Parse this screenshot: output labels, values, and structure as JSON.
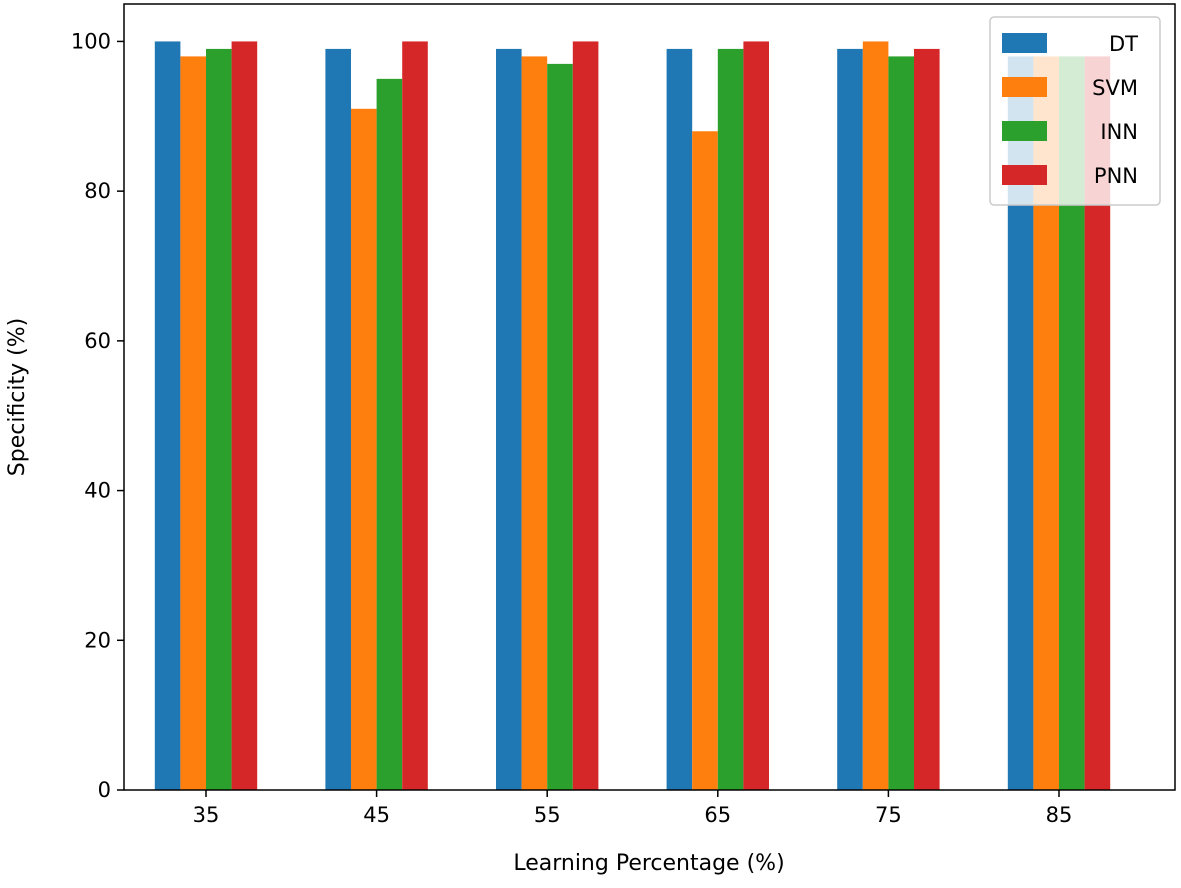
{
  "chart_data": {
    "type": "bar",
    "title": "",
    "xlabel": "Learning Percentage (%)",
    "ylabel": "Specificity (%)",
    "categories": [
      "35",
      "45",
      "55",
      "65",
      "75",
      "85"
    ],
    "series": [
      {
        "name": "DT",
        "color": "#1f77b4",
        "values": [
          100,
          99,
          99,
          99,
          99,
          98
        ]
      },
      {
        "name": "SVM",
        "color": "#ff7f0e",
        "values": [
          98,
          91,
          98,
          88,
          100,
          98
        ]
      },
      {
        "name": "INN",
        "color": "#2ca02c",
        "values": [
          99,
          95,
          97,
          99,
          98,
          98
        ]
      },
      {
        "name": "PNN",
        "color": "#d62728",
        "values": [
          100,
          100,
          100,
          100,
          99,
          98
        ]
      }
    ],
    "ylim": [
      0,
      105
    ],
    "yticks": [
      0,
      20,
      40,
      60,
      80,
      100
    ],
    "grid": false,
    "legend": "top-right"
  }
}
